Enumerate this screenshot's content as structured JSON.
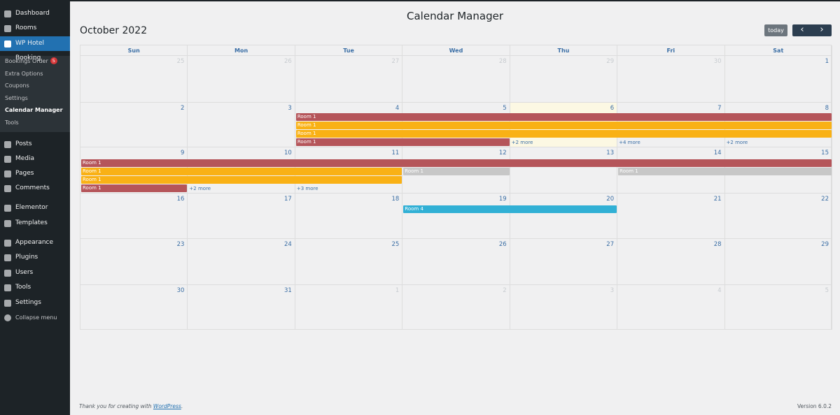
{
  "sidebar": {
    "menu_top": [
      "Dashboard",
      "Rooms",
      "WP Hotel Booking"
    ],
    "submenu": [
      "Bookings Order",
      "Extra Options",
      "Coupons",
      "Settings",
      "Calendar Manager",
      "Tools"
    ],
    "badge": "5",
    "menu_bottom": [
      "Posts",
      "Media",
      "Pages",
      "Comments",
      "Elementor",
      "Templates",
      "Appearance",
      "Plugins",
      "Users",
      "Tools",
      "Settings"
    ],
    "collapse": "Collapse menu"
  },
  "page_title": "Calendar Manager",
  "calendar": {
    "month": "October 2022",
    "today_button": "today",
    "prev": "‹",
    "next": "›",
    "weekdays": [
      "Sun",
      "Mon",
      "Tue",
      "Wed",
      "Thu",
      "Fri",
      "Sat"
    ],
    "weeks": [
      [
        25,
        26,
        27,
        28,
        29,
        30,
        1
      ],
      [
        2,
        3,
        4,
        5,
        6,
        7,
        8
      ],
      [
        9,
        10,
        11,
        12,
        13,
        14,
        15
      ],
      [
        16,
        17,
        18,
        19,
        20,
        21,
        22
      ],
      [
        23,
        24,
        25,
        26,
        27,
        28,
        29
      ],
      [
        30,
        31,
        1,
        2,
        3,
        4,
        5
      ]
    ],
    "events": [
      "Room 1",
      "Room 1",
      "Room 1",
      "Room 1",
      "Room 1",
      "Room 1",
      "Room 1",
      "Room 1",
      "Room 1",
      "Room 1",
      "Room 1",
      "Room 4"
    ],
    "more_links": [
      "+2 more",
      "+4 more",
      "+2 more",
      "+2 more",
      "+3 more"
    ]
  },
  "footer": {
    "thanks": "Thank you for creating with",
    "link": "WordPress",
    "period": ".",
    "version": "Version 6.0.2"
  }
}
